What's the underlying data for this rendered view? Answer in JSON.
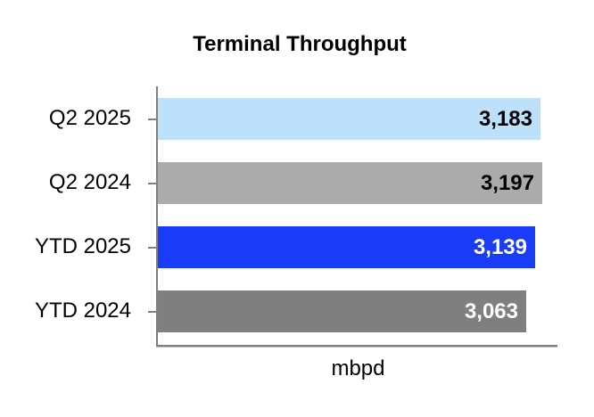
{
  "chart_data": {
    "type": "bar",
    "orientation": "horizontal",
    "title": "Terminal Throughput",
    "xlabel": "mbpd",
    "categories": [
      "Q2 2025",
      "Q2 2024",
      "YTD 2025",
      "YTD 2024"
    ],
    "values": [
      3183,
      3197,
      3139,
      3063
    ],
    "value_labels": [
      "3,183",
      "3,197",
      "3,139",
      "3,063"
    ],
    "bar_colors": [
      "#BDE0FB",
      "#ABABAB",
      "#1A3BF7",
      "#7F7F7F"
    ],
    "value_label_colors": [
      "#000000",
      "#000000",
      "#FFFFFF",
      "#FFFFFF"
    ],
    "xlim": [
      0,
      3317
    ],
    "grid": false,
    "legend": false,
    "axis_color": "#808080"
  }
}
